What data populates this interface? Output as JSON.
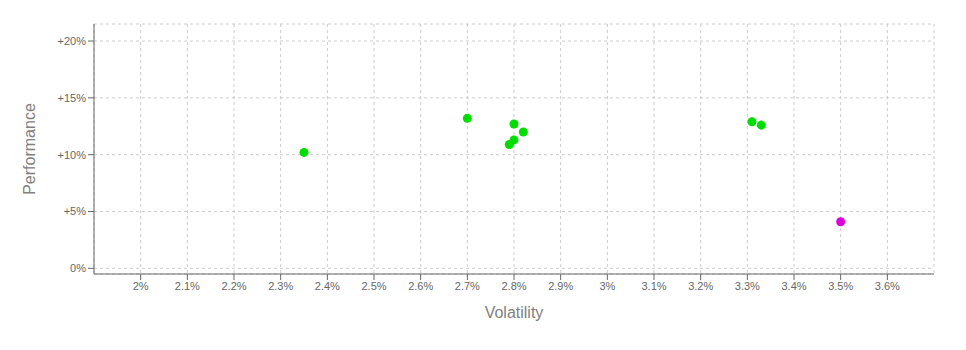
{
  "chart_data": {
    "type": "scatter",
    "xlabel": "Volatility",
    "ylabel": "Performance",
    "series": [
      {
        "color": "#00dd00",
        "x": [
          0.0235,
          0.027,
          0.028,
          0.0282,
          0.028,
          0.0279,
          0.0331,
          0.0333
        ],
        "y": [
          10.2,
          13.2,
          12.7,
          12.0,
          11.3,
          10.9,
          12.9,
          12.6
        ]
      },
      {
        "color": "#dd00dd",
        "x": [
          0.035
        ],
        "y": [
          4.1
        ]
      }
    ],
    "xlim": [
      0.019,
      0.037
    ],
    "ylim": [
      -0.5,
      21.5
    ],
    "xticks": [
      {
        "value": 0.02,
        "label": "2%"
      },
      {
        "value": 0.021,
        "label": "2.1%"
      },
      {
        "value": 0.022,
        "label": "2.2%"
      },
      {
        "value": 0.023,
        "label": "2.3%"
      },
      {
        "value": 0.024,
        "label": "2.4%"
      },
      {
        "value": 0.025,
        "label": "2.5%"
      },
      {
        "value": 0.026,
        "label": "2.6%"
      },
      {
        "value": 0.027,
        "label": "2.7%"
      },
      {
        "value": 0.028,
        "label": "2.8%"
      },
      {
        "value": 0.029,
        "label": "2.9%"
      },
      {
        "value": 0.03,
        "label": "3%"
      },
      {
        "value": 0.031,
        "label": "3.1%"
      },
      {
        "value": 0.032,
        "label": "3.2%"
      },
      {
        "value": 0.033,
        "label": "3.3%"
      },
      {
        "value": 0.034,
        "label": "3.4%"
      },
      {
        "value": 0.035,
        "label": "3.5%"
      },
      {
        "value": 0.036,
        "label": "3.6%"
      }
    ],
    "yticks": [
      {
        "value": 0,
        "label": "0%"
      },
      {
        "value": 5,
        "label": "+5%"
      },
      {
        "value": 10,
        "label": "+10%"
      },
      {
        "value": 15,
        "label": "+15%"
      },
      {
        "value": 20,
        "label": "+20%"
      }
    ],
    "grid": true
  }
}
